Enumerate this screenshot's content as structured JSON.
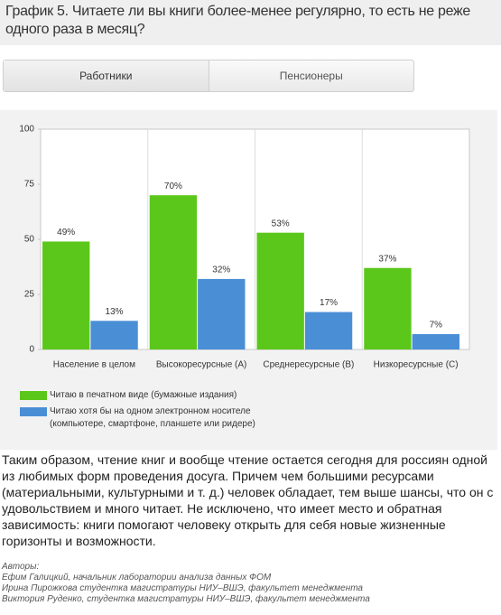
{
  "header": {
    "title": "График 5. Читаете ли вы книги более-менее регулярно, то есть не реже одного раза в месяц?"
  },
  "tabs": [
    "Работники",
    "Пенсионеры"
  ],
  "chart_data": {
    "type": "bar",
    "categories": [
      "Население в целом",
      "Высокоресурсные (А)",
      "Среднересурсные (В)",
      "Низкоресурсные (С)"
    ],
    "series": [
      {
        "name": "Читаю в печатном виде (бумажные издания)",
        "color": "#5cc71b",
        "values": [
          49,
          70,
          53,
          37
        ],
        "value_labels": [
          "49%",
          "70%",
          "53%",
          "37%"
        ]
      },
      {
        "name": "Читаю хотя бы на одном электронном носителе (компьютере, смартфоне, планшете или ридере)",
        "color": "#4a8fd6",
        "values": [
          13,
          32,
          17,
          7
        ],
        "value_labels": [
          "13%",
          "32%",
          "17%",
          "7%"
        ]
      }
    ],
    "ylim": [
      0,
      100
    ],
    "yticks": [
      0,
      25,
      50,
      75,
      100
    ],
    "grid": false
  },
  "body": {
    "paragraph": "Таким образом, чтение книг и вообще чтение остается сегодня для россиян одной из любимых форм проведения досуга. Причем чем большими ресурсами (материальными, культурными и т. д.) человек обладает, тем выше шансы, что он с удовольствием и много читает. Не исключено, что имеет место и обратная зависимость: книги помогают человеку открыть для себя новые жизненные горизонты и возможности."
  },
  "authors": {
    "label": "Авторы:",
    "list": [
      "Ефим Галицкий, начальник лаборатории анализа данных ФОМ",
      "Ирина Пирожкова студентка магистратуры НИУ–ВШЭ, факультет менеджмента",
      "Виктория Руденко, студентка магистратуры НИУ–ВШЭ, факультет менеджмента"
    ]
  }
}
